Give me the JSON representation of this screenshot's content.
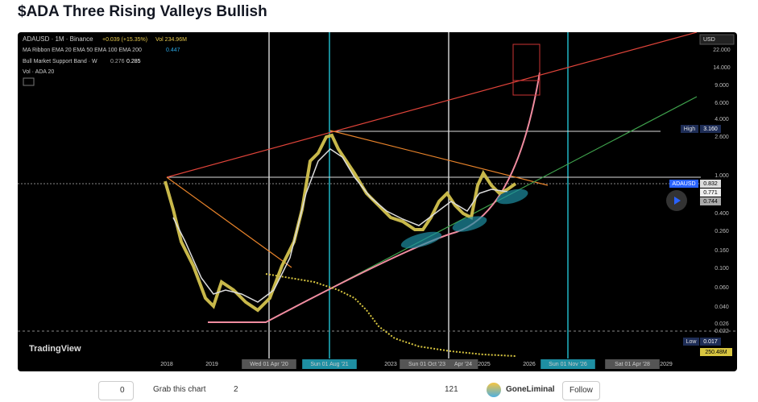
{
  "header": {
    "title": "$ADA Three Rising Valleys Bullish"
  },
  "legend": {
    "symbol": "ADAUSD · 1M · Binance",
    "change": "+0.039 (+15.35%)",
    "volume": "Vol 234.96M",
    "ma_ribbon": "MA Ribbon EMA 20 EMA 50 EMA 100 EMA 200",
    "ma_value": "0.447",
    "support_band": "Bull Market Support Band · W",
    "band_values": [
      "0.276",
      "0.285"
    ],
    "vol_indicator": "Vol · ADA 20"
  },
  "price_axis": {
    "currency": "USD",
    "labels": [
      "22.000",
      "14.000",
      "9.000",
      "6.000",
      "4.000",
      "2.600",
      "1.000",
      "0.400",
      "0.260",
      "0.160",
      "0.100",
      "0.060",
      "0.040",
      "0.026",
      "0.022"
    ]
  },
  "badges": {
    "high_label": "High",
    "high_value": "3.160",
    "symbol": "ADAUSD",
    "last": "0.832",
    "band_a": "0.771",
    "band_b": "0.744",
    "low_label": "Low",
    "low_value": "0.017",
    "volume": "250.48M"
  },
  "time_axis": {
    "labels": [
      "2018",
      "2019",
      "Wed 01 Apr '20",
      "Sun 01 Aug '21",
      "2023",
      "Sun 01 Oct '23",
      "Apr '24",
      "2025",
      "2026",
      "Sun 01 Nov '26",
      "Sat 01 Apr '28",
      "2029"
    ]
  },
  "watermark": "TradingView",
  "footer": {
    "boosts": "0",
    "grab": "Grab this chart",
    "comments": "2",
    "views": "121",
    "author": "GoneLiminal",
    "follow": "Follow"
  }
}
